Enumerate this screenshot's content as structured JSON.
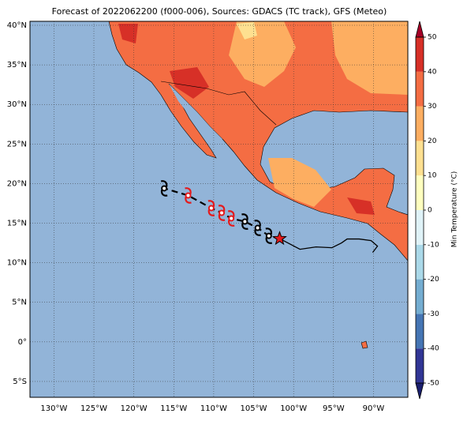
{
  "chart_data": {
    "type": "map",
    "title": "Forecast of 2022062200 (f000-006), Sources: GDACS (TC track), GFS (Meteo)",
    "xlim": [
      -133,
      -85.7
    ],
    "ylim": [
      -7,
      40.5
    ],
    "xticks": [
      {
        "value": -130,
        "label": "130°W"
      },
      {
        "value": -125,
        "label": "125°W"
      },
      {
        "value": -120,
        "label": "120°W"
      },
      {
        "value": -115,
        "label": "115°W"
      },
      {
        "value": -110,
        "label": "110°W"
      },
      {
        "value": -105,
        "label": "105°W"
      },
      {
        "value": -100,
        "label": "100°W"
      },
      {
        "value": -95,
        "label": "95°W"
      },
      {
        "value": -90,
        "label": "90°W"
      }
    ],
    "yticks": [
      {
        "value": -5,
        "label": "5°S"
      },
      {
        "value": 0,
        "label": "0°"
      },
      {
        "value": 5,
        "label": "5°N"
      },
      {
        "value": 10,
        "label": "10°N"
      },
      {
        "value": 15,
        "label": "15°N"
      },
      {
        "value": 20,
        "label": "20°N"
      },
      {
        "value": 25,
        "label": "25°N"
      },
      {
        "value": 30,
        "label": "30°N"
      },
      {
        "value": 35,
        "label": "35°N"
      },
      {
        "value": 40,
        "label": "40°N"
      }
    ],
    "grid": true,
    "ocean_color": "#92b4d8",
    "track": {
      "x": [
        -101.75,
        -103.1,
        -104.5,
        -106.1,
        -107.8,
        -109.0,
        -110.3,
        -113.2,
        -116.2
      ],
      "y": [
        13.05,
        13.4,
        14.4,
        15.2,
        15.6,
        16.3,
        16.9,
        18.5,
        19.4
      ],
      "markers": [
        "star",
        "storm",
        "storm",
        "storm",
        "storm",
        "storm",
        "storm",
        "storm",
        "storm"
      ],
      "marker_colors": [
        "#e41a1c",
        "#000000",
        "#000000",
        "#000000",
        "#e41a1c",
        "#e41a1c",
        "#e41a1c",
        "#e41a1c",
        "#000000"
      ]
    },
    "past_track": {
      "x": [
        -101.75,
        -99.2,
        -97.2,
        -95.2,
        -94.0,
        -93.3,
        -91.8,
        -90.3,
        -89.5,
        -90.1
      ],
      "y": [
        13.05,
        11.7,
        12.0,
        11.9,
        12.5,
        13.0,
        13.0,
        12.8,
        12.1,
        11.3
      ]
    },
    "colorbar": {
      "label": "Min Temperature (°C)",
      "lim": [
        -50,
        50
      ],
      "ticks": [
        -50,
        -40,
        -30,
        -20,
        -10,
        0,
        10,
        20,
        30,
        40,
        50
      ],
      "colors": [
        "#313695",
        "#4575b4",
        "#74add1",
        "#abd9e9",
        "#e0f3f8",
        "#ffffbf",
        "#fee090",
        "#fdae61",
        "#f46d43",
        "#d73027"
      ],
      "under_color": "#1a1f6e",
      "over_color": "#a50026"
    }
  }
}
